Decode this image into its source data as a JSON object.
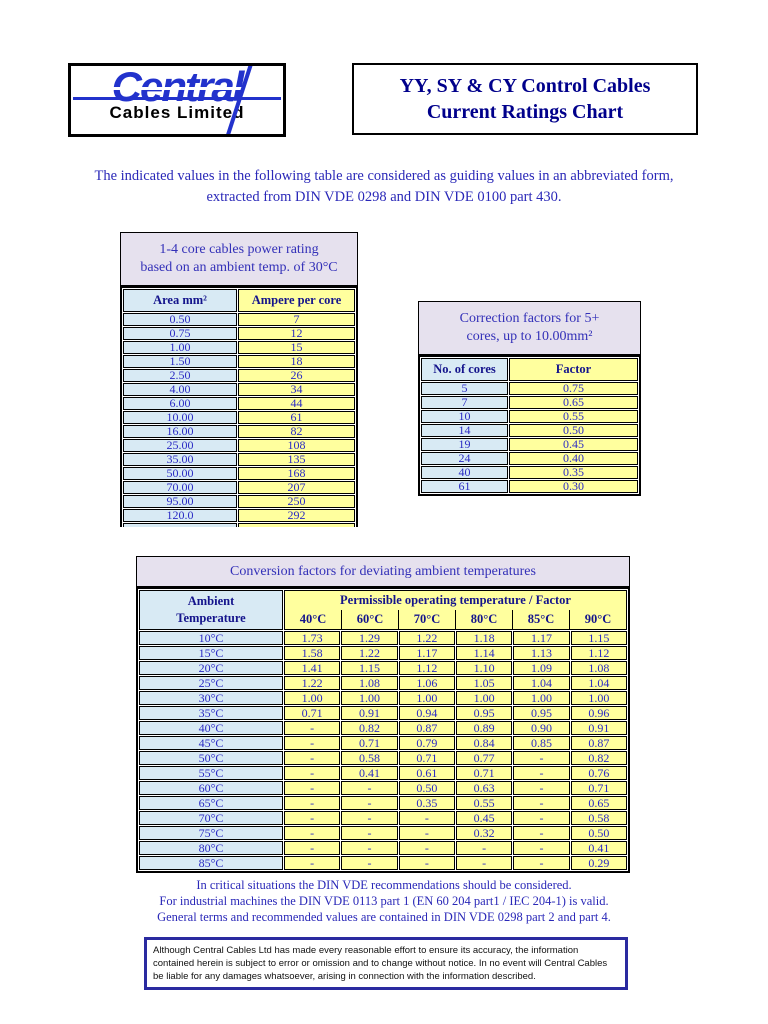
{
  "header": {
    "logo_brand": "Central",
    "logo_subtitle": "Cables Limited",
    "title_line1": "YY, SY & CY Control Cables",
    "title_line2": "Current Ratings Chart"
  },
  "intro": {
    "line1": "The indicated values in the following table are considered as guiding values in an abbreviated form,",
    "line2": "extracted from DIN VDE 0298 and DIN VDE 0100 part 430."
  },
  "table1": {
    "title_line1": "1-4 core cables power rating",
    "title_line2": "based on an ambient temp. of 30°C",
    "columns": [
      "Area mm²",
      "Ampere per core"
    ],
    "rows": [
      [
        "0.50",
        "7"
      ],
      [
        "0.75",
        "12"
      ],
      [
        "1.00",
        "15"
      ],
      [
        "1.50",
        "18"
      ],
      [
        "2.50",
        "26"
      ],
      [
        "4.00",
        "34"
      ],
      [
        "6.00",
        "44"
      ],
      [
        "10.00",
        "61"
      ],
      [
        "16.00",
        "82"
      ],
      [
        "25.00",
        "108"
      ],
      [
        "35.00",
        "135"
      ],
      [
        "50.00",
        "168"
      ],
      [
        "70.00",
        "207"
      ],
      [
        "95.00",
        "250"
      ],
      [
        "120.0",
        "292"
      ],
      [
        "",
        ""
      ]
    ]
  },
  "table2": {
    "title_line1": "Correction factors for 5+",
    "title_line2": "cores, up to 10.00mm²",
    "columns": [
      "No. of cores",
      "Factor"
    ],
    "rows": [
      [
        "5",
        "0.75"
      ],
      [
        "7",
        "0.65"
      ],
      [
        "10",
        "0.55"
      ],
      [
        "14",
        "0.50"
      ],
      [
        "19",
        "0.45"
      ],
      [
        "24",
        "0.40"
      ],
      [
        "40",
        "0.35"
      ],
      [
        "61",
        "0.30"
      ]
    ]
  },
  "table3": {
    "title": "Conversion factors for deviating ambient temperatures",
    "col1_header_line1": "Ambient",
    "col1_header_line2": "Temperature",
    "group_header": "Permissible operating temperature / Factor",
    "temp_columns": [
      "40°C",
      "60°C",
      "70°C",
      "80°C",
      "85°C",
      "90°C"
    ],
    "rows": [
      {
        "label": "10°C",
        "values": [
          "1.73",
          "1.29",
          "1.22",
          "1.18",
          "1.17",
          "1.15"
        ]
      },
      {
        "label": "15°C",
        "values": [
          "1.58",
          "1.22",
          "1.17",
          "1.14",
          "1.13",
          "1.12"
        ]
      },
      {
        "label": "20°C",
        "values": [
          "1.41",
          "1.15",
          "1.12",
          "1.10",
          "1.09",
          "1.08"
        ]
      },
      {
        "label": "25°C",
        "values": [
          "1.22",
          "1.08",
          "1.06",
          "1.05",
          "1.04",
          "1.04"
        ]
      },
      {
        "label": "30°C",
        "values": [
          "1.00",
          "1.00",
          "1.00",
          "1.00",
          "1.00",
          "1.00"
        ]
      },
      {
        "label": "35°C",
        "values": [
          "0.71",
          "0.91",
          "0.94",
          "0.95",
          "0.95",
          "0.96"
        ]
      },
      {
        "label": "40°C",
        "values": [
          "-",
          "0.82",
          "0.87",
          "0.89",
          "0.90",
          "0.91"
        ]
      },
      {
        "label": "45°C",
        "values": [
          "-",
          "0.71",
          "0.79",
          "0.84",
          "0.85",
          "0.87"
        ]
      },
      {
        "label": "50°C",
        "values": [
          "-",
          "0.58",
          "0.71",
          "0.77",
          "-",
          "0.82"
        ]
      },
      {
        "label": "55°C",
        "values": [
          "-",
          "0.41",
          "0.61",
          "0.71",
          "-",
          "0.76"
        ]
      },
      {
        "label": "60°C",
        "values": [
          "-",
          "-",
          "0.50",
          "0.63",
          "-",
          "0.71"
        ]
      },
      {
        "label": "65°C",
        "values": [
          "-",
          "-",
          "0.35",
          "0.55",
          "-",
          "0.65"
        ]
      },
      {
        "label": "70°C",
        "values": [
          "-",
          "-",
          "-",
          "0.45",
          "-",
          "0.58"
        ]
      },
      {
        "label": "75°C",
        "values": [
          "-",
          "-",
          "-",
          "0.32",
          "-",
          "0.50"
        ]
      },
      {
        "label": "80°C",
        "values": [
          "-",
          "-",
          "-",
          "-",
          "-",
          "0.41"
        ]
      },
      {
        "label": "85°C",
        "values": [
          "-",
          "-",
          "-",
          "-",
          "-",
          "0.29"
        ]
      }
    ]
  },
  "notes": [
    "In critical situations the DIN VDE recommendations should be considered.",
    "For industrial machines the DIN VDE 0113 part 1 (EN 60 204 part1 / IEC 204-1) is valid.",
    "General terms and recommended values are contained in DIN VDE 0298 part 2 and part 4."
  ],
  "disclaimer": "Although Central Cables Ltd has made every reasonable effort to ensure its accuracy, the information contained herein is subject to error or omission and to change without notice. In no event will Central Cables be liable for any damages whatsoever, arising in connection with the information described.",
  "colors": {
    "accent_blue_text": "#2b2bc4",
    "navy_header_text": "#14148c",
    "title_navy": "#00008b",
    "caption_bg": "#e6e1ee",
    "blue_cell_bg": "#d8eaf4",
    "yellow_cell_bg": "#ffff9e",
    "logo_blue": "#2232cc",
    "disclaimer_border": "#2a2aa0"
  }
}
